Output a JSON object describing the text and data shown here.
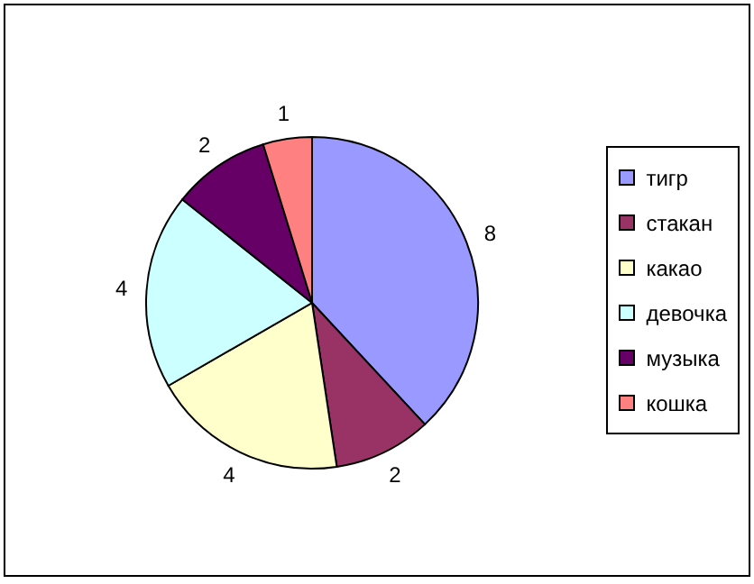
{
  "chart_data": {
    "type": "pie",
    "categories": [
      "тигр",
      "стакан",
      "какао",
      "девочка",
      "музыка",
      "кошка"
    ],
    "values": [
      8,
      2,
      4,
      4,
      2,
      1
    ],
    "colors": [
      "#9999ff",
      "#993366",
      "#ffffcc",
      "#ccffff",
      "#660066",
      "#ff8080"
    ],
    "data_labels": true,
    "legend": "right"
  }
}
